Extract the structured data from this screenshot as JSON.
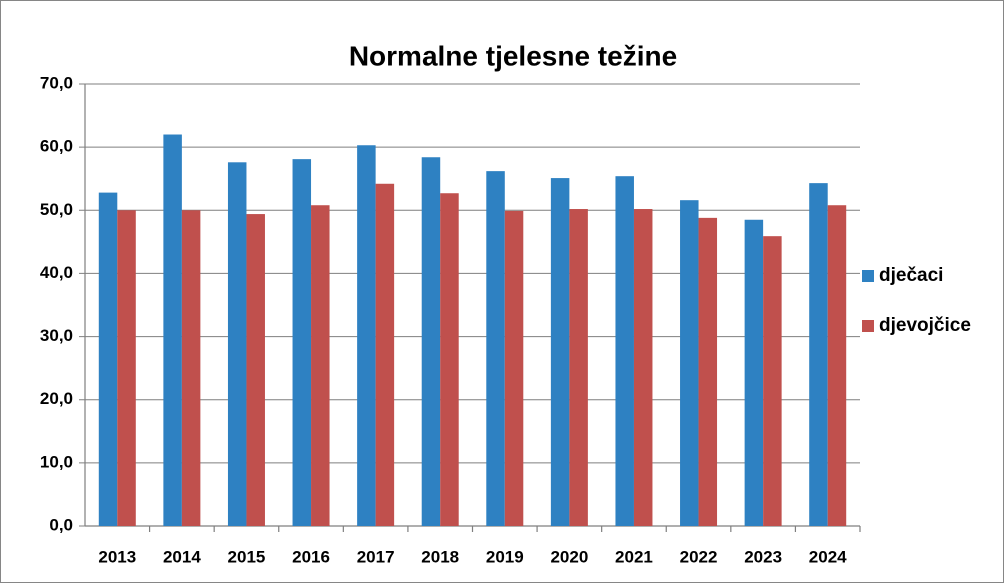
{
  "chart_data": {
    "type": "bar",
    "title": "Normalne tjelesne težine",
    "categories": [
      "2013",
      "2014",
      "2015",
      "2016",
      "2017",
      "2018",
      "2019",
      "2020",
      "2021",
      "2022",
      "2023",
      "2024"
    ],
    "series": [
      {
        "name": "dječaci",
        "color": "#2e81c2",
        "values": [
          52.8,
          62.0,
          57.6,
          58.1,
          60.3,
          58.4,
          56.2,
          55.1,
          55.4,
          51.6,
          48.5,
          54.3
        ]
      },
      {
        "name": "djevojčice",
        "color": "#c0504d",
        "values": [
          50.0,
          50.0,
          49.4,
          50.8,
          54.2,
          52.7,
          49.9,
          50.2,
          50.2,
          48.8,
          45.9,
          50.8
        ]
      }
    ],
    "ylim": [
      0,
      70
    ],
    "yticks": [
      {
        "value": 0,
        "label": "0,0"
      },
      {
        "value": 10,
        "label": "10,0"
      },
      {
        "value": 20,
        "label": "20,0"
      },
      {
        "value": 30,
        "label": "30,0"
      },
      {
        "value": 40,
        "label": "40,0"
      },
      {
        "value": 50,
        "label": "50,0"
      },
      {
        "value": 60,
        "label": "60,0"
      },
      {
        "value": 70,
        "label": "70,0"
      }
    ],
    "grid": true,
    "legend": "right"
  }
}
